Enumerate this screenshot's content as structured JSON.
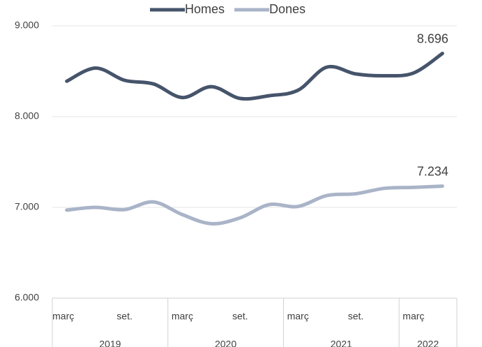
{
  "chart_data": {
    "type": "line",
    "categories": [
      "març",
      null,
      "set.",
      null,
      "març",
      null,
      "set.",
      null,
      "març",
      null,
      "set.",
      null,
      "març",
      null
    ],
    "groups": [
      {
        "label": "2019",
        "count": 4
      },
      {
        "label": "2020",
        "count": 4
      },
      {
        "label": "2021",
        "count": 4
      },
      {
        "label": "2022",
        "count": 2
      }
    ],
    "series": [
      {
        "name": "Homes",
        "color": "#46546b",
        "values": [
          8390,
          8535,
          8400,
          8360,
          8210,
          8330,
          8200,
          8230,
          8290,
          8545,
          8470,
          8450,
          8480,
          8696
        ],
        "value_labels": [
          null,
          null,
          null,
          null,
          null,
          null,
          null,
          null,
          null,
          null,
          null,
          null,
          null,
          "8.696"
        ]
      },
      {
        "name": "Dones",
        "color": "#aab4c8",
        "values": [
          6970,
          7000,
          6975,
          7060,
          6920,
          6820,
          6885,
          7030,
          7010,
          7130,
          7150,
          7210,
          7220,
          7234
        ],
        "value_labels": [
          null,
          null,
          null,
          null,
          null,
          null,
          null,
          null,
          null,
          null,
          null,
          null,
          null,
          "7.234"
        ]
      }
    ],
    "ylim": [
      6000,
      9000
    ],
    "yticks": [
      {
        "value": 6000,
        "label": "6.000"
      },
      {
        "value": 7000,
        "label": "7.000"
      },
      {
        "value": 8000,
        "label": "8.000"
      },
      {
        "value": 9000,
        "label": "9.000"
      }
    ],
    "grid": true,
    "legend": "top"
  }
}
